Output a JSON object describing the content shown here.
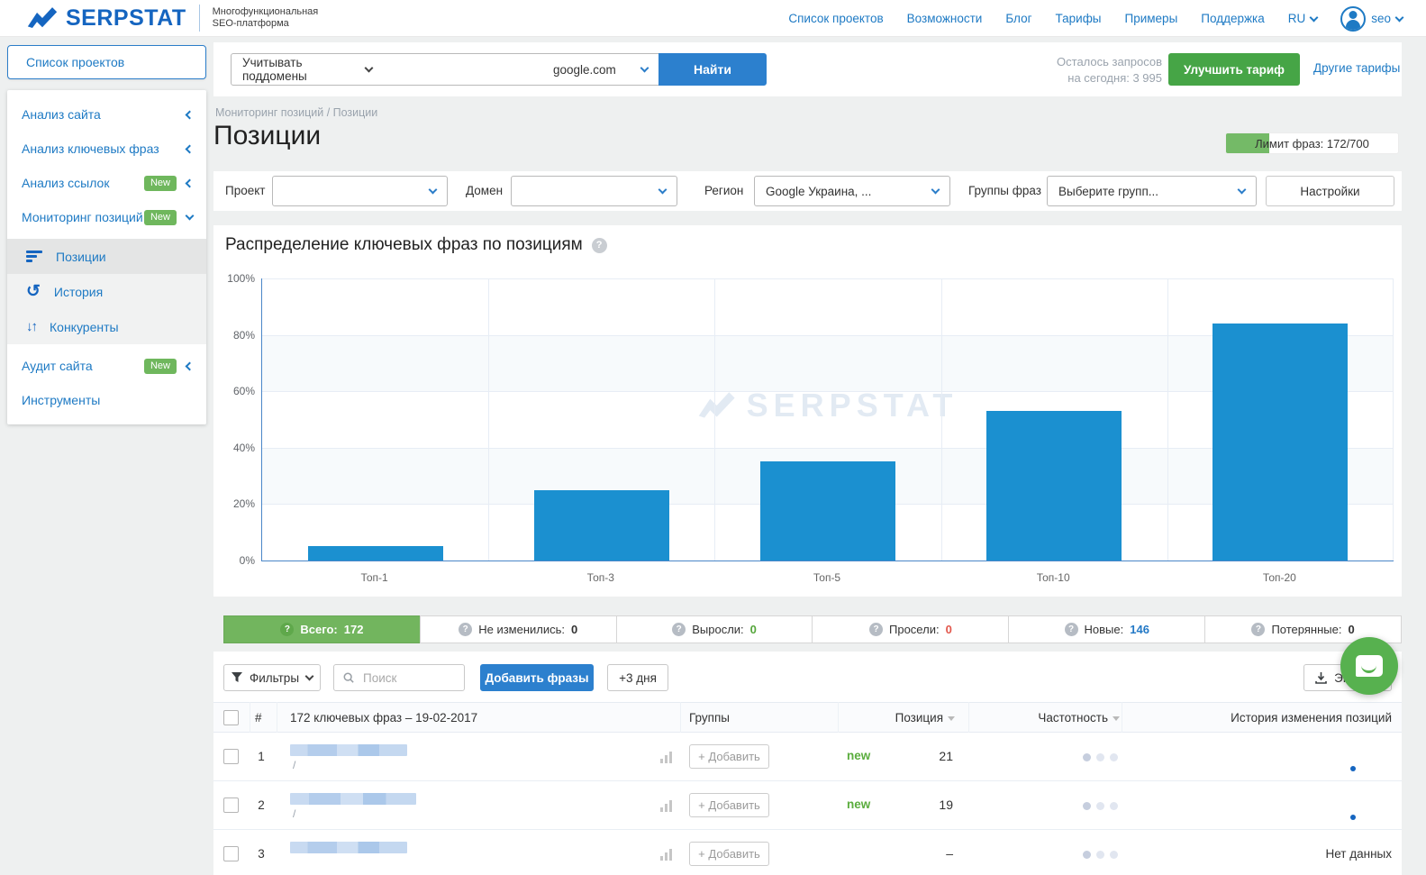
{
  "brand": {
    "logo_text": "SERPSTAT",
    "tagline_line1": "Многофункциональная",
    "tagline_line2": "SEO-платформа",
    "watermark": "SERPSTAT"
  },
  "topnav": {
    "links": [
      "Список проектов",
      "Возможности",
      "Блог",
      "Тарифы",
      "Примеры",
      "Поддержка"
    ],
    "lang": "RU",
    "username": "seo"
  },
  "sidebar": {
    "projects_button": "Список проектов",
    "items_top": [
      {
        "label": "Анализ сайта",
        "badge": "",
        "state": "collapsed"
      },
      {
        "label": "Анализ ключевых фраз",
        "badge": "",
        "state": "collapsed"
      },
      {
        "label": "Анализ ссылок",
        "badge": "New",
        "state": "collapsed"
      },
      {
        "label": "Мониторинг позиций",
        "badge": "New",
        "state": "expanded"
      }
    ],
    "submenu": [
      {
        "label": "Позиции",
        "icon": "positions-icon",
        "active": true
      },
      {
        "label": "История",
        "icon": "history-icon",
        "active": false
      },
      {
        "label": "Конкуренты",
        "icon": "competitors-icon",
        "active": false
      }
    ],
    "items_bottom": [
      {
        "label": "Аудит сайта",
        "badge": "New",
        "state": "collapsed"
      },
      {
        "label": "Инструменты",
        "badge": "",
        "state": "none"
      }
    ]
  },
  "searchbar": {
    "subdomains_select": "Учитывать поддомены",
    "query_value": "",
    "domain_select": "google.com",
    "find_button": "Найти",
    "quota_line1": "Осталось запросов",
    "quota_line2": "на сегодня: 3 995",
    "upgrade_button": "Улучшить тариф",
    "other_plans_link": "Другие тарифы"
  },
  "page": {
    "breadcrumb": "Мониторинг позиций / Позиции",
    "title": "Позиции",
    "limit_badge": "Лимит фраз: 172/700",
    "limit_fill_percent": 25
  },
  "filters": {
    "project_label": "Проект",
    "project_value": "",
    "domain_label": "Домен",
    "domain_value": "",
    "region_label": "Регион",
    "region_value": "Google Украина, ...",
    "groups_label": "Группы фраз",
    "groups_value": "Выберите групп...",
    "settings_button": "Настройки"
  },
  "chart_data": {
    "type": "bar",
    "title": "Распределение ключевых фраз по позициям",
    "categories": [
      "Топ-1",
      "Топ-3",
      "Топ-5",
      "Топ-10",
      "Топ-20"
    ],
    "values": [
      5,
      25,
      35,
      53,
      84
    ],
    "xlabel": "",
    "ylabel": "",
    "ylim": [
      0,
      100
    ],
    "yticks": [
      "0%",
      "20%",
      "40%",
      "60%",
      "80%",
      "100%"
    ],
    "grid": true,
    "legend": "none",
    "bar_color": "#1b90d0"
  },
  "stats_tabs": [
    {
      "label": "Всего:",
      "value": "172",
      "active": true,
      "value_color": "#ffffff"
    },
    {
      "label": "Не изменились:",
      "value": "0",
      "active": false,
      "value_color": "#333333"
    },
    {
      "label": "Выросли:",
      "value": "0",
      "active": false,
      "value_color": "#55a63c"
    },
    {
      "label": "Просели:",
      "value": "0",
      "active": false,
      "value_color": "#e2574c"
    },
    {
      "label": "Новые:",
      "value": "146",
      "active": false,
      "value_color": "#2479c6"
    },
    {
      "label": "Потерянные:",
      "value": "0",
      "active": false,
      "value_color": "#333333"
    }
  ],
  "toolbar": {
    "filters_button": "Фильтры",
    "search_placeholder": "Поиск",
    "add_phrases_button": "Добавить фразы",
    "plus_days_button": "+3 дня",
    "export_button": "Экспорт"
  },
  "table": {
    "header": {
      "num": "#",
      "phrases": "172 ключевых фраз – 19-02-2017",
      "groups": "Группы",
      "position": "Позиция",
      "frequency": "Частотность",
      "history": "История изменения позиций"
    },
    "add_group_button": "+ Добавить",
    "rows": [
      {
        "num": "1",
        "url_path": "/",
        "badge": "new",
        "position": "21",
        "redacted_width": 130,
        "history_type": "dot",
        "history_text": ""
      },
      {
        "num": "2",
        "url_path": "/",
        "badge": "new",
        "position": "19",
        "redacted_width": 140,
        "history_type": "dot",
        "history_text": ""
      },
      {
        "num": "3",
        "url_path": "",
        "badge": "",
        "position": "–",
        "redacted_width": 130,
        "history_type": "text",
        "history_text": "Нет данных"
      }
    ]
  },
  "colors": {
    "brand_blue": "#1565c0",
    "link_blue": "#1e7ac4",
    "button_blue": "#2c80ce",
    "button_green": "#46a546",
    "tab_green": "#72b55e",
    "badge_green": "#6fb75d",
    "bar_blue": "#1b90d0",
    "new_green": "#5bad3e",
    "red": "#e2574c"
  }
}
